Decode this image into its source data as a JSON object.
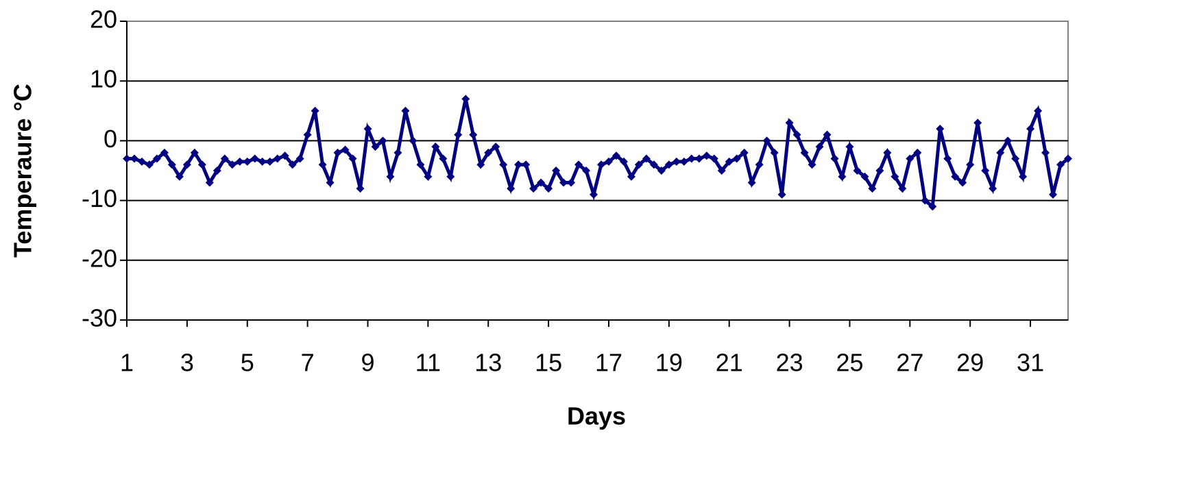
{
  "chart_data": {
    "type": "line",
    "y_label": "Temperaure °C",
    "x_label": "Days",
    "x": [
      1,
      1.25,
      1.5,
      1.75,
      2,
      2.25,
      2.5,
      2.75,
      3,
      3.25,
      3.5,
      3.75,
      4,
      4.25,
      4.5,
      4.75,
      5,
      5.25,
      5.5,
      5.75,
      6,
      6.25,
      6.5,
      6.75,
      7,
      7.25,
      7.5,
      7.75,
      8,
      8.25,
      8.5,
      8.75,
      9,
      9.25,
      9.5,
      9.75,
      10,
      10.25,
      10.5,
      10.75,
      11,
      11.25,
      11.5,
      11.75,
      12,
      12.25,
      12.5,
      12.75,
      13,
      13.25,
      13.5,
      13.75,
      14,
      14.25,
      14.5,
      14.75,
      15,
      15.25,
      15.5,
      15.75,
      16,
      16.25,
      16.5,
      16.75,
      17,
      17.25,
      17.5,
      17.75,
      18,
      18.25,
      18.5,
      18.75,
      19,
      19.25,
      19.5,
      19.75,
      20,
      20.25,
      20.5,
      20.75,
      21,
      21.25,
      21.5,
      21.75,
      22,
      22.25,
      22.5,
      22.75,
      23,
      23.25,
      23.5,
      23.75,
      24,
      24.25,
      24.5,
      24.75,
      25,
      25.25,
      25.5,
      25.75,
      26,
      26.25,
      26.5,
      26.75,
      27,
      27.25,
      27.5,
      27.75,
      28,
      28.25,
      28.5,
      28.75,
      29,
      29.25,
      29.5,
      29.75,
      30,
      30.25,
      30.5,
      30.75,
      31,
      31.25,
      31.5,
      31.75,
      32,
      32.25
    ],
    "series": [
      {
        "color": "#000080",
        "values": [
          -3,
          -3,
          -3.5,
          -4,
          -3,
          -2,
          -4,
          -6,
          -4,
          -2,
          -4,
          -7,
          -5,
          -3,
          -4,
          -3.5,
          -3.5,
          -3,
          -3.5,
          -3.5,
          -3,
          -2.5,
          -4,
          -3,
          1,
          5,
          -4,
          -7,
          -2,
          -1.5,
          -3,
          -8,
          2,
          -1,
          0,
          -6,
          -2,
          5,
          0,
          -4,
          -6,
          -1,
          -3,
          -6,
          1,
          7,
          1,
          -4,
          -2,
          -1,
          -4,
          -8,
          -4,
          -4,
          -8,
          -7,
          -8,
          -5,
          -7,
          -7,
          -4,
          -5,
          -9,
          -4,
          -3.5,
          -2.5,
          -3.5,
          -6,
          -4,
          -3,
          -4,
          -5,
          -4,
          -3.5,
          -3.5,
          -3,
          -3,
          -2.5,
          -3,
          -5,
          -3.5,
          -3,
          -2,
          -7,
          -4,
          0,
          -2,
          -9,
          3,
          1,
          -2,
          -4,
          -1,
          1,
          -3,
          -6,
          -1,
          -5,
          -6,
          -8,
          -5,
          -2,
          -6,
          -8,
          -3,
          -2,
          -10,
          -11,
          2,
          -3,
          -6,
          -7,
          -4,
          3,
          -5,
          -8,
          -2,
          0,
          -3,
          -6,
          2,
          5,
          -2,
          -9,
          -4,
          -3
        ]
      }
    ],
    "xlim": [
      1,
      32.25
    ],
    "ylim": [
      -30,
      20
    ],
    "xticks": [
      1,
      3,
      5,
      7,
      9,
      11,
      13,
      15,
      17,
      19,
      21,
      23,
      25,
      27,
      29,
      31
    ],
    "yticks": [
      -30,
      -20,
      -10,
      0,
      10,
      20
    ],
    "grid": true
  }
}
